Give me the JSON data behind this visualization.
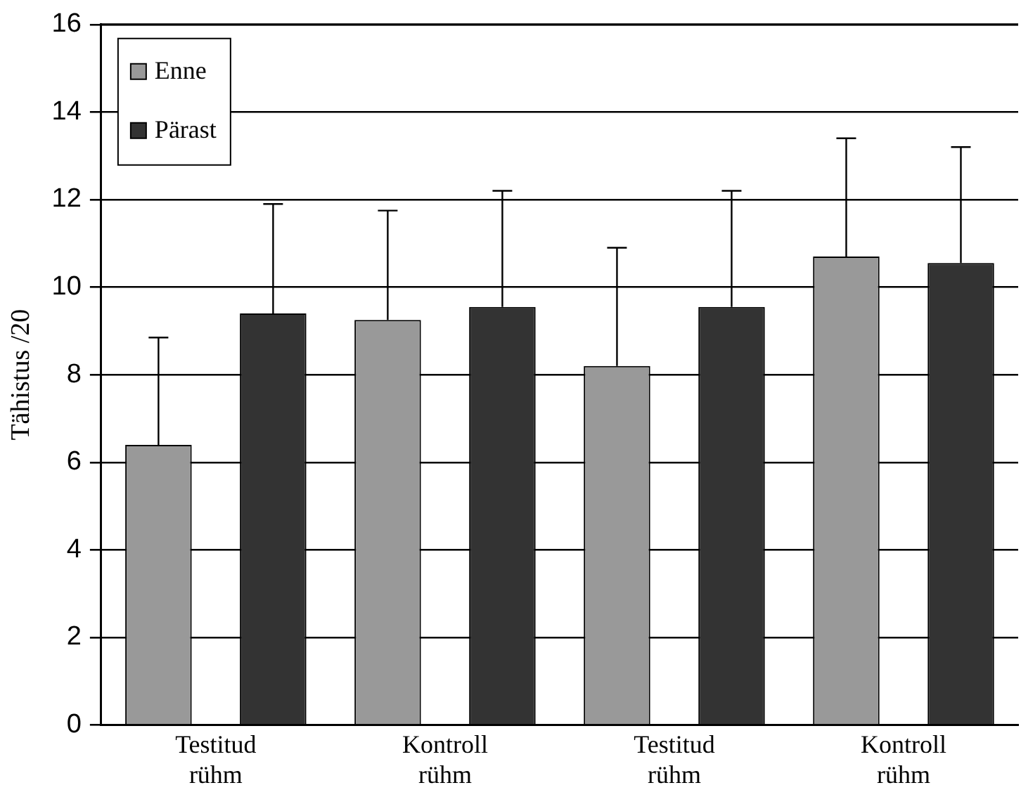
{
  "chart_data": {
    "type": "bar",
    "ylabel": "Tähistus /20",
    "categories": [
      "Testitud rühm",
      "Kontroll rühm",
      "Testitud rühm",
      "Kontroll rühm"
    ],
    "series": [
      {
        "name": "Enne",
        "color": "#999999",
        "values": [
          6.4,
          9.25,
          8.2,
          10.7
        ],
        "errors": [
          [
            6.4,
            8.85
          ],
          [
            9.25,
            11.75
          ],
          [
            8.2,
            10.9
          ],
          [
            10.7,
            13.4
          ]
        ]
      },
      {
        "name": "Pärast",
        "color": "#333333",
        "values": [
          9.4,
          9.55,
          9.55,
          10.55
        ],
        "errors": [
          [
            9.4,
            11.9
          ],
          [
            9.55,
            12.2
          ],
          [
            9.55,
            12.2
          ],
          [
            10.55,
            13.2
          ]
        ]
      }
    ],
    "ylim": [
      0,
      16
    ],
    "yticks": [
      0,
      2,
      4,
      6,
      8,
      10,
      12,
      14,
      16
    ],
    "grid": "y",
    "legend": "top left"
  }
}
